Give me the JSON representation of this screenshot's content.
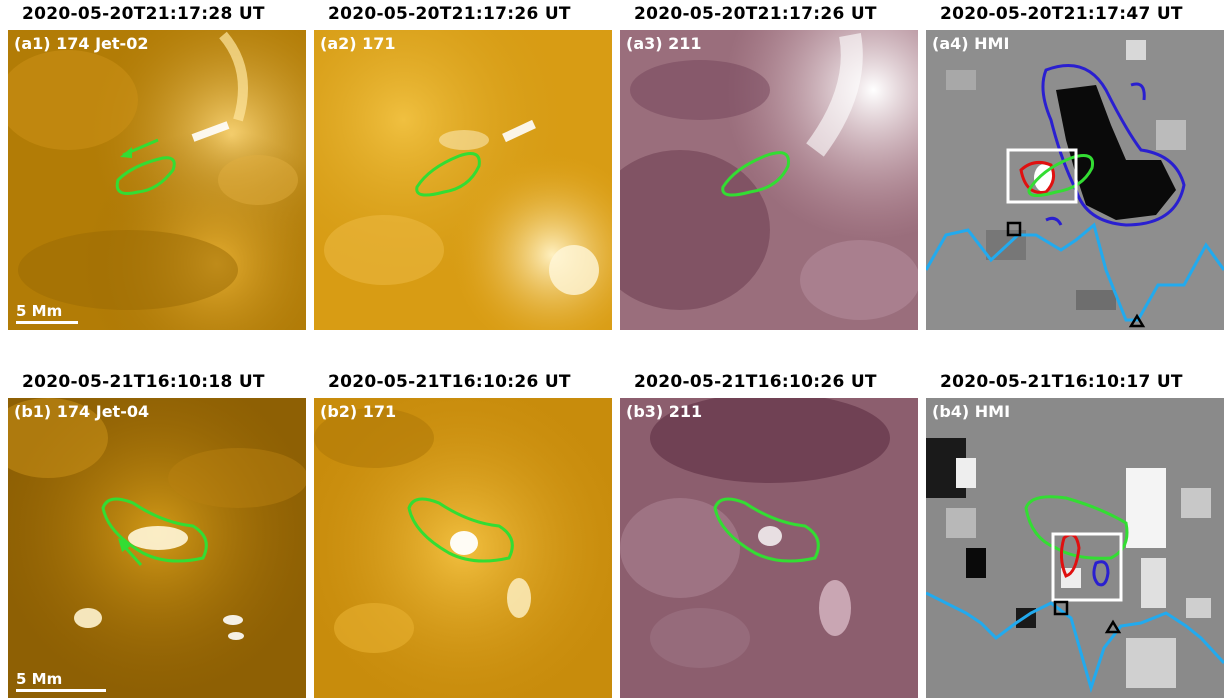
{
  "rows": [
    {
      "panels": [
        {
          "timestamp": "2020-05-20T21:17:28 UT",
          "label": "(a1) 174 Jet-02",
          "scale": "5 Mm",
          "channel": "174"
        },
        {
          "timestamp": "2020-05-20T21:17:26 UT",
          "label": "(a2) 171",
          "channel": "171"
        },
        {
          "timestamp": "2020-05-20T21:17:26 UT",
          "label": "(a3) 211",
          "channel": "211"
        },
        {
          "timestamp": "2020-05-20T21:17:47 UT",
          "label": "(a4) HMI",
          "channel": "HMI"
        }
      ]
    },
    {
      "panels": [
        {
          "timestamp": "2020-05-21T16:10:18 UT",
          "label": "(b1) 174 Jet-04",
          "scale": "5 Mm",
          "channel": "174"
        },
        {
          "timestamp": "2020-05-21T16:10:26 UT",
          "label": "(b2) 171",
          "channel": "171"
        },
        {
          "timestamp": "2020-05-21T16:10:26 UT",
          "label": "(b3) 211",
          "channel": "211"
        },
        {
          "timestamp": "2020-05-21T16:10:17 UT",
          "label": "(b4) HMI",
          "channel": "HMI"
        }
      ]
    }
  ],
  "colors": {
    "contour_jet": "#33dd33",
    "contour_positive": "#e01010",
    "contour_negative": "#2a1fd0",
    "slit_profile": "#22aaee",
    "box": "#ffffff",
    "fe174": "#c48a06",
    "fe171": "#e0a010",
    "fe211": "#8a5a6a",
    "hmi": "#8c8c8c"
  }
}
